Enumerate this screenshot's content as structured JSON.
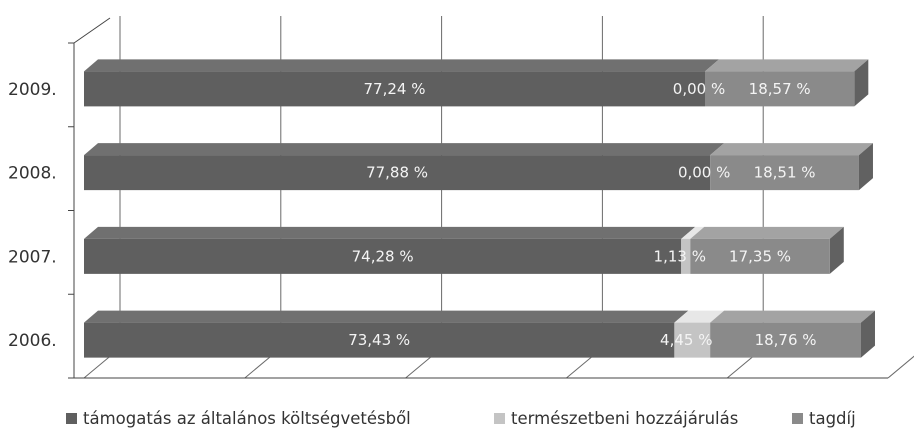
{
  "chart_data": {
    "type": "bar",
    "orientation": "horizontal",
    "stacked": "100%",
    "three_d": true,
    "title": "",
    "xlabel": "",
    "ylabel": "",
    "xlim": [
      0,
      100
    ],
    "grid": true,
    "legend_position": "bottom",
    "categories": [
      "2009.",
      "2008.",
      "2007.",
      "2006."
    ],
    "series": [
      {
        "name": "támogatás az általános költségvetésből",
        "color": "#5f5f5f",
        "values": [
          77.24,
          77.88,
          74.28,
          73.43
        ],
        "labels": [
          "77,24 %",
          "77,88 %",
          "74,28 %",
          "73,43 %"
        ]
      },
      {
        "name": "természetbeni hozzájárulás",
        "color": "#c4c4c4",
        "values": [
          0.0,
          0.0,
          1.13,
          4.45
        ],
        "labels": [
          "0,00 %",
          "0,00 %",
          "1,13 %",
          "4,45 %"
        ]
      },
      {
        "name": "tagdíj",
        "color": "#8a8a8a",
        "values": [
          18.57,
          18.51,
          17.35,
          18.76
        ],
        "labels": [
          "18,57 %",
          "18,51 %",
          "17,35 %",
          "18,76 %"
        ]
      }
    ]
  }
}
